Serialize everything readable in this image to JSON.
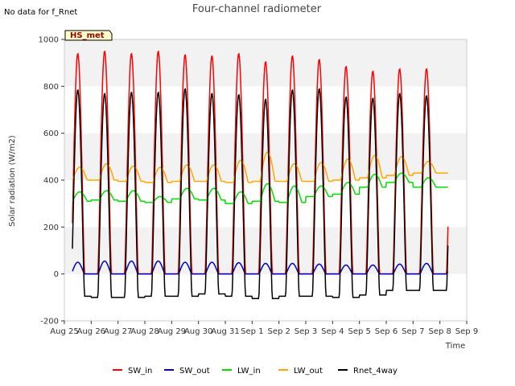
{
  "no_data_note": "No data for f_Rnet",
  "station_tag": "HS_met",
  "chart_data": {
    "type": "line",
    "title": "Four-channel radiometer",
    "xlabel": "Time",
    "ylabel": "Solar radiation (W/m2)",
    "x_unit": "day",
    "xlim": [
      0,
      15
    ],
    "ylim": [
      -200,
      1000
    ],
    "y_ticks": [
      -200,
      0,
      200,
      400,
      600,
      800,
      1000
    ],
    "x_ticks": [
      {
        "x": 0,
        "label": "Aug 25"
      },
      {
        "x": 1,
        "label": "Aug 26"
      },
      {
        "x": 2,
        "label": "Aug 27"
      },
      {
        "x": 3,
        "label": "Aug 28"
      },
      {
        "x": 4,
        "label": "Aug 29"
      },
      {
        "x": 5,
        "label": "Aug 30"
      },
      {
        "x": 6,
        "label": "Aug 31"
      },
      {
        "x": 7,
        "label": "Sep 1"
      },
      {
        "x": 8,
        "label": "Sep 2"
      },
      {
        "x": 9,
        "label": "Sep 3"
      },
      {
        "x": 10,
        "label": "Sep 4"
      },
      {
        "x": 11,
        "label": "Sep 5"
      },
      {
        "x": 12,
        "label": "Sep 6"
      },
      {
        "x": 13,
        "label": "Sep 7"
      },
      {
        "x": 14,
        "label": "Sep 8"
      },
      {
        "x": 15,
        "label": "Sep 9"
      }
    ],
    "grid": "horizontal bands",
    "legend_position": "bottom",
    "data_start": 0.3,
    "data_end": 14.3,
    "days": [
      "Aug 25",
      "Aug 26",
      "Aug 27",
      "Aug 28",
      "Aug 29",
      "Aug 30",
      "Aug 31",
      "Sep 1",
      "Sep 2",
      "Sep 3",
      "Sep 4",
      "Sep 5",
      "Sep 6",
      "Sep 7",
      "Sep 8"
    ],
    "series": [
      {
        "name": "SW_in",
        "color": "#ff0000",
        "daily_peak": [
          940,
          950,
          940,
          950,
          935,
          930,
          940,
          905,
          930,
          915,
          885,
          865,
          875,
          875
        ],
        "night": 0
      },
      {
        "name": "SW_out",
        "color": "#0000cc",
        "daily_peak": [
          50,
          55,
          55,
          55,
          50,
          50,
          48,
          45,
          45,
          42,
          38,
          38,
          42,
          45
        ],
        "night": 0
      },
      {
        "name": "LW_in",
        "color": "#00dd00",
        "daily_peak": [
          350,
          355,
          355,
          330,
          365,
          365,
          350,
          385,
          375,
          375,
          390,
          425,
          430,
          410
        ],
        "night": [
          310,
          315,
          310,
          305,
          320,
          315,
          300,
          310,
          305,
          330,
          340,
          370,
          390,
          370
        ]
      },
      {
        "name": "LW_out",
        "color": "#ffa500",
        "daily_peak": [
          455,
          470,
          460,
          455,
          465,
          465,
          485,
          520,
          470,
          475,
          490,
          505,
          500,
          480
        ],
        "night": [
          400,
          400,
          395,
          390,
          395,
          395,
          390,
          395,
          395,
          395,
          400,
          410,
          420,
          430
        ]
      },
      {
        "name": "Rnet_4way",
        "color": "#000000",
        "daily_peak": [
          785,
          770,
          775,
          775,
          790,
          770,
          765,
          745,
          785,
          790,
          755,
          750,
          770,
          760
        ],
        "night": [
          -95,
          -100,
          -100,
          -95,
          -95,
          -85,
          -95,
          -105,
          -95,
          -95,
          -100,
          -90,
          -70,
          -70
        ]
      }
    ]
  }
}
